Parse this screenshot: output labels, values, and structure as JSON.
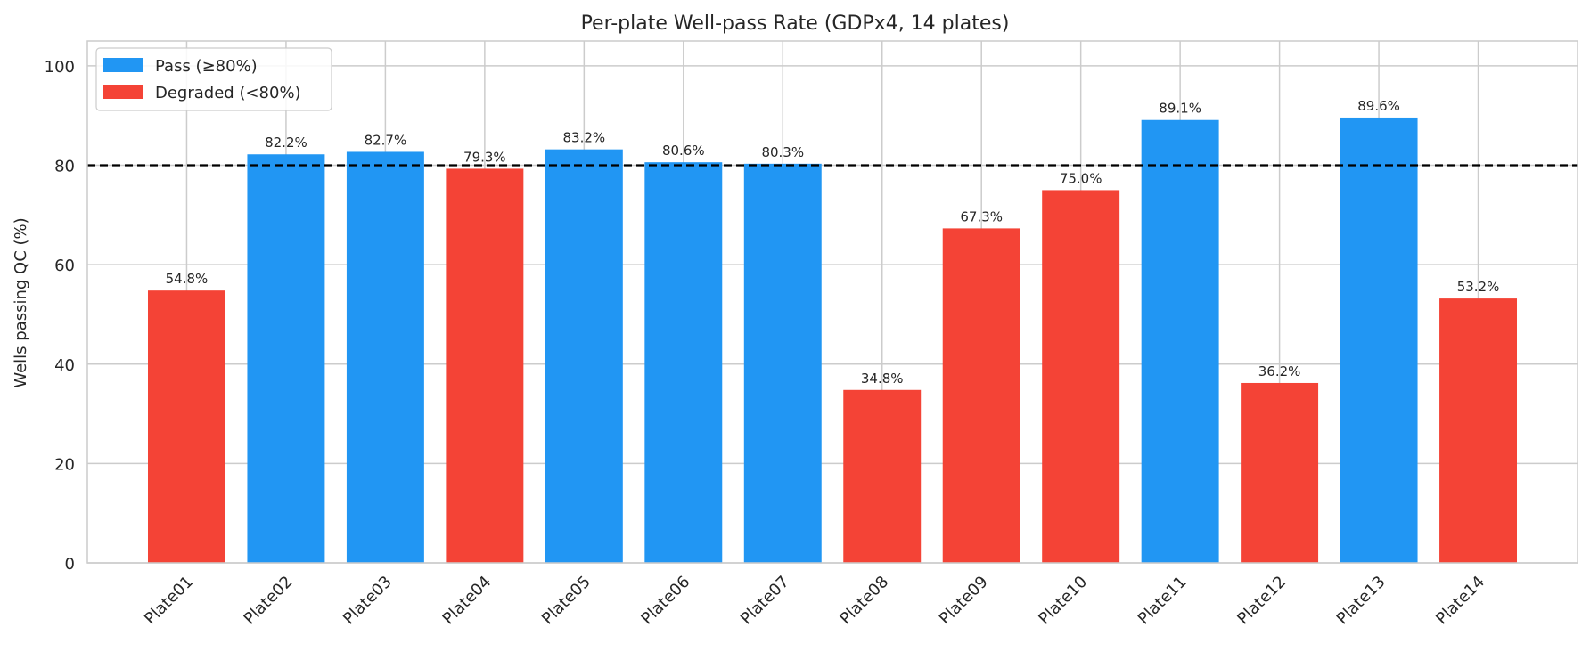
{
  "chart_data": {
    "type": "bar",
    "title": "Per-plate Well-pass Rate (GDPx4, 14 plates)",
    "xlabel": "",
    "ylabel": "Wells passing QC (%)",
    "ylim": [
      0,
      105
    ],
    "yticks": [
      0,
      20,
      40,
      60,
      80,
      100
    ],
    "grid": true,
    "legend_position": "top-left",
    "threshold": 80,
    "categories": [
      "Plate01",
      "Plate02",
      "Plate03",
      "Plate04",
      "Plate05",
      "Plate06",
      "Plate07",
      "Plate08",
      "Plate09",
      "Plate10",
      "Plate11",
      "Plate12",
      "Plate13",
      "Plate14"
    ],
    "values": [
      54.8,
      82.2,
      82.7,
      79.3,
      83.2,
      80.6,
      80.3,
      34.8,
      67.3,
      75.0,
      89.1,
      36.2,
      89.6,
      53.2
    ],
    "data_labels": [
      "54.8%",
      "82.2%",
      "82.7%",
      "79.3%",
      "83.2%",
      "80.6%",
      "80.3%",
      "34.8%",
      "67.3%",
      "75.0%",
      "89.1%",
      "36.2%",
      "89.6%",
      "53.2%"
    ],
    "legend": [
      {
        "label": "Pass (≥80%)",
        "color": "#2196F3"
      },
      {
        "label": "Degraded (<80%)",
        "color": "#F44336"
      }
    ],
    "colors": {
      "pass": "#2196F3",
      "degraded": "#F44336",
      "threshold_line": "#000000",
      "grid": "#cccccc"
    }
  }
}
